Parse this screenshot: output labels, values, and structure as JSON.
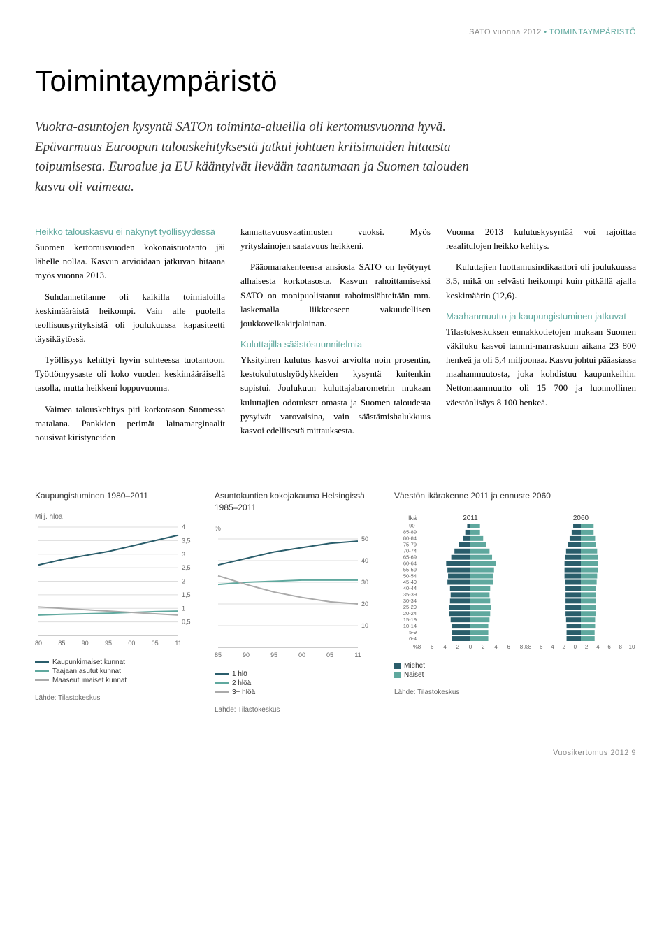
{
  "header": {
    "gray": "SATO vuonna 2012 ",
    "teal": "• TOIMINTAYMPÄRISTÖ"
  },
  "title": "Toimintaympäristö",
  "lead": "Vuokra-asuntojen kysyntä SATOn toiminta-alueilla oli kertomusvuonna hyvä. Epävarmuus Euroopan talouskehityksestä jatkui johtuen kriisimaiden hitaasta toipumisesta. Euroalue ja EU kääntyivät lievään taantumaan ja Suomen talouden kasvu oli vaimeaa.",
  "col1": {
    "sub": "Heikko talouskasvu ei näkynyt työllisyydessä",
    "p1": "Suomen kertomusvuoden kokonaistuotanto jäi lähelle nollaa. Kasvun arvioidaan jatkuvan hitaana myös vuonna 2013.",
    "p2": "Suhdannetilanne oli kaikilla toimialoilla keskimääräistä heikompi. Vain alle puolella teollisuusyrityksistä oli joulukuussa kapasiteetti täysikäytössä.",
    "p3": "Työllisyys kehittyi hyvin suhteessa tuotantoon. Työttömyysaste oli koko vuoden keskimääräisellä tasolla, mutta heikkeni loppuvuonna.",
    "p4": "Vaimea talouskehitys piti korkotason Suomessa matalana. Pankkien perimät lainamarginaalit nousivat kiristyneiden"
  },
  "col2": {
    "p1": "kannattavuusvaatimusten vuoksi. Myös yrityslainojen saatavuus heikkeni.",
    "p2": "Pääomarakenteensa ansiosta SATO on hyötynyt alhaisesta korkotasosta. Kasvun rahoittamiseksi SATO on monipuolistanut rahoituslähteitään mm. laskemalla liikkeeseen vakuudellisen joukkovelkakirjalainan.",
    "sub": "Kuluttajilla säästösuunnitelmia",
    "p3": "Yksityinen kulutus kasvoi arviolta noin prosentin, kestokulutushyödykkeiden kysyntä kuitenkin supistui. Joulukuun kuluttajabarometrin mukaan kuluttajien odotukset omasta ja Suomen taloudesta pysyivät varovaisina, vain säästämishalukkuus kasvoi edellisestä mittauksesta."
  },
  "col3": {
    "p1": "Vuonna 2013 kulutuskysyntää voi rajoittaa reaalitulojen heikko kehitys.",
    "p2": "Kuluttajien luottamusindikaattori oli joulukuussa 3,5, mikä on selvästi heikompi kuin pitkällä ajalla keskimäärin (12,6).",
    "sub": "Maahanmuutto ja kaupungistuminen jatkuvat",
    "p3": "Tilastokeskuksen ennakkotietojen mukaan Suomen väkiluku kasvoi tammi-marraskuun aikana 23 800 henkeä ja oli 5,4 miljoonaa. Kasvu johtui pääasiassa maahanmuutosta, joka kohdistuu kaupunkeihin. Nettomaanmuutto oli 15 700 ja luonnollinen väestönlisäys 8 100 henkeä."
  },
  "chart1": {
    "title": "Kaupungistuminen 1980–2011",
    "ylabel": "Milj. hlöä",
    "years": [
      "80",
      "85",
      "90",
      "95",
      "00",
      "05",
      "11"
    ],
    "ymax": 4.0,
    "ystep": 0.5,
    "series": [
      {
        "name": "Kaupunkimaiset kunnat",
        "color": "#2a5d6b",
        "values": [
          2.6,
          2.8,
          2.95,
          3.1,
          3.3,
          3.5,
          3.7
        ]
      },
      {
        "name": "Taajaan asutut kunnat",
        "color": "#5fa89e",
        "values": [
          0.75,
          0.78,
          0.8,
          0.82,
          0.85,
          0.88,
          0.9
        ]
      },
      {
        "name": "Maaseutumaiset kunnat",
        "color": "#aaaaaa",
        "values": [
          1.05,
          1.0,
          0.95,
          0.9,
          0.85,
          0.8,
          0.75
        ]
      }
    ],
    "source": "Lähde: Tilastokeskus"
  },
  "chart2": {
    "title": "Asuntokuntien kokojakauma Helsingissä 1985–2011",
    "ylabel": "%",
    "years": [
      "85",
      "90",
      "95",
      "00",
      "05",
      "11"
    ],
    "ymax": 50,
    "ystep": 10,
    "series": [
      {
        "name": "1 hlö",
        "color": "#2a5d6b",
        "values": [
          38,
          41,
          44,
          46,
          48,
          49
        ]
      },
      {
        "name": "2 hlöä",
        "color": "#5fa89e",
        "values": [
          29,
          30,
          30.5,
          31,
          31,
          31
        ]
      },
      {
        "name": "3+ hlöä",
        "color": "#aaaaaa",
        "values": [
          33,
          29,
          25.5,
          23,
          21,
          20
        ]
      }
    ],
    "source": "Lähde: Tilastokeskus"
  },
  "chart3": {
    "title": "Väestön ikärakenne 2011 ja ennuste 2060",
    "ylabel": "Ikä",
    "years": [
      "2011",
      "2060"
    ],
    "agebands": [
      "90-",
      "85-89",
      "80-84",
      "75-79",
      "70-74",
      "65-69",
      "60-64",
      "55-59",
      "50-54",
      "45-49",
      "40-44",
      "35-39",
      "30-34",
      "25-29",
      "20-24",
      "15-19",
      "10-14",
      "5-9",
      "0-4"
    ],
    "xaxis": "%",
    "xticks_left": [
      8,
      6,
      4,
      2,
      0,
      2,
      4,
      6,
      8
    ],
    "xticks_right": [
      8,
      6,
      4,
      2,
      0,
      2,
      4,
      6,
      8,
      10
    ],
    "legend": [
      {
        "name": "Miehet",
        "color": "#2a5d6b"
      },
      {
        "name": "Naiset",
        "color": "#5fa89e"
      }
    ],
    "pyramid2011_m": [
      0.5,
      0.8,
      1.2,
      1.8,
      2.5,
      3.0,
      3.8,
      3.6,
      3.5,
      3.6,
      3.2,
      3.1,
      3.2,
      3.3,
      3.3,
      3.1,
      2.9,
      2.9,
      2.9
    ],
    "pyramid2011_f": [
      1.5,
      1.5,
      2.0,
      2.5,
      3.0,
      3.4,
      4.0,
      3.7,
      3.6,
      3.6,
      3.1,
      3.0,
      3.1,
      3.2,
      3.1,
      3.0,
      2.8,
      2.8,
      2.8
    ],
    "pyramid2060_m": [
      1.5,
      1.8,
      2.2,
      2.6,
      2.9,
      3.1,
      3.2,
      3.2,
      3.2,
      3.1,
      3.0,
      3.0,
      3.0,
      3.0,
      3.0,
      2.9,
      2.8,
      2.8,
      2.8
    ],
    "pyramid2060_f": [
      2.5,
      2.5,
      2.8,
      3.0,
      3.2,
      3.3,
      3.3,
      3.3,
      3.2,
      3.1,
      3.0,
      3.0,
      3.0,
      3.0,
      2.9,
      2.8,
      2.8,
      2.7,
      2.7
    ],
    "source": "Lähde: Tilastokeskus"
  },
  "footer": "Vuosikertomus 2012  9"
}
